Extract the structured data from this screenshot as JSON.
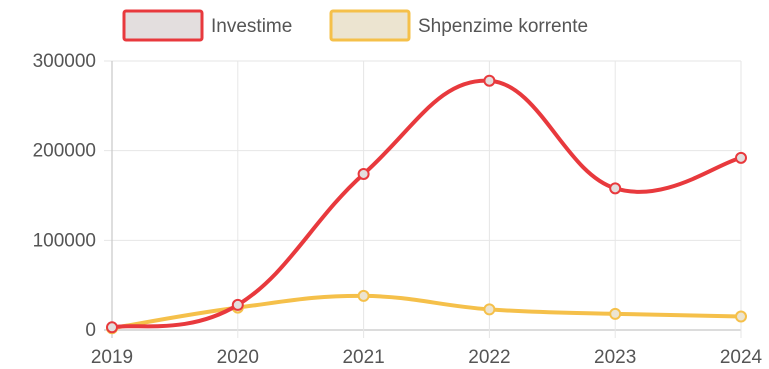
{
  "chart_data": {
    "type": "line",
    "title": "",
    "xlabel": "",
    "ylabel": "",
    "categories": [
      "2019",
      "2020",
      "2021",
      "2022",
      "2023",
      "2024"
    ],
    "ylim": [
      0,
      300000
    ],
    "yticks": [
      0,
      100000,
      200000,
      300000
    ],
    "ytick_labels": [
      "0",
      "100000",
      "200000",
      "300000"
    ],
    "grid": true,
    "legend_position": "top",
    "smooth": true,
    "series": [
      {
        "name": "Investime",
        "values": [
          3000,
          28000,
          174000,
          278000,
          158000,
          192000
        ],
        "color": "#e8393d",
        "legend_fill": "#e3dede"
      },
      {
        "name": "Shpenzime korrente",
        "values": [
          2000,
          25000,
          38000,
          23000,
          18000,
          15000
        ],
        "color": "#f5c04a",
        "legend_fill": "#ece4d0"
      }
    ]
  }
}
